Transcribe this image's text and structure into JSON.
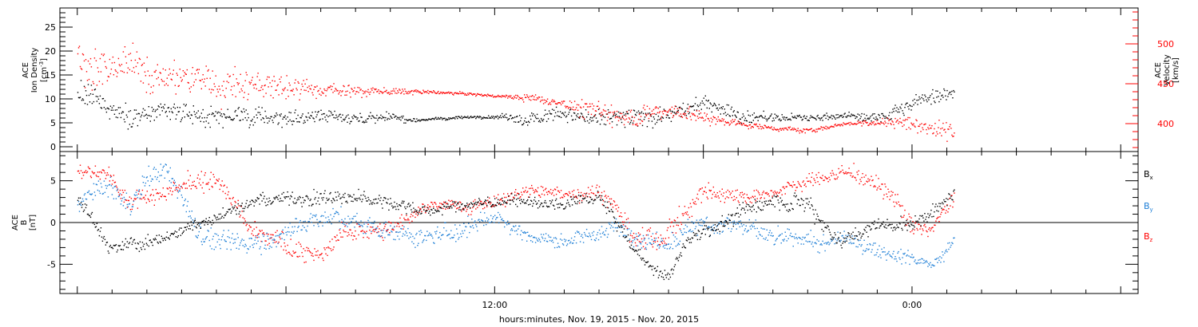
{
  "xlabel": "hours:minutes, Nov. 19, 2015 - Nov. 20, 2015",
  "x_ticks": [
    {
      "t": 12,
      "label": "12:00"
    },
    {
      "t": 24,
      "label": "0:00"
    }
  ],
  "colors": {
    "black": "#000000",
    "red": "#ff0000",
    "blue": "#1e7fd6"
  },
  "chart_data": [
    {
      "type": "scatter",
      "panel": "top",
      "x_unit": "hours since Nov. 19, 2015 00:00",
      "xlim": [
        -0.5,
        30.5
      ],
      "data_xlim": [
        0,
        25.2
      ],
      "grid": false,
      "left_axis": {
        "label_line1": "ACE",
        "label_line2": "Ion Density",
        "unit": "[cm",
        "unit_exp": "-3",
        "unit_close": "]",
        "ylim": [
          -1,
          29
        ],
        "ticks": [
          "0",
          "5",
          "10",
          "15",
          "20",
          "25"
        ],
        "tick_values": [
          0,
          5,
          10,
          15,
          20,
          25
        ],
        "color": "#000000"
      },
      "right_axis": {
        "label_line1": "ACE",
        "label_line2": "Velocity",
        "unit": "[km/s]",
        "ylim": [
          365,
          545
        ],
        "ticks": [
          "400",
          "450",
          "500"
        ],
        "tick_values": [
          400,
          450,
          500
        ],
        "color": "#ff0000"
      },
      "series": [
        {
          "axis": "left",
          "color": "#000000",
          "keyframes": [
            [
              0,
              11
            ],
            [
              1,
              8
            ],
            [
              2,
              6.5
            ],
            [
              4,
              6.5
            ],
            [
              6,
              6
            ],
            [
              8,
              6
            ],
            [
              10,
              5.8
            ],
            [
              12,
              6.5
            ],
            [
              13,
              7
            ],
            [
              14,
              7.2
            ],
            [
              15,
              5.5
            ],
            [
              16,
              6
            ],
            [
              17,
              7
            ],
            [
              18,
              9.5
            ],
            [
              19,
              6.5
            ],
            [
              20,
              6
            ],
            [
              21,
              6
            ],
            [
              22,
              6.5
            ],
            [
              23,
              6
            ],
            [
              24,
              9
            ],
            [
              25.2,
              13
            ]
          ],
          "scatter": [
            [
              0,
              3.5
            ],
            [
              2,
              2.8
            ],
            [
              4,
              2.5
            ],
            [
              6,
              2.2
            ],
            [
              8,
              1.6
            ],
            [
              10,
              0.4
            ],
            [
              12,
              0.4
            ],
            [
              13,
              2.4
            ],
            [
              14,
              1.8
            ],
            [
              15,
              2.2
            ],
            [
              16,
              2.5
            ],
            [
              17,
              2
            ],
            [
              18,
              2
            ],
            [
              19,
              2
            ],
            [
              20,
              1.2
            ],
            [
              21,
              0.8
            ],
            [
              22,
              0.8
            ],
            [
              23,
              1.5
            ],
            [
              24,
              2
            ],
            [
              25.2,
              2.2
            ]
          ]
        },
        {
          "axis": "right",
          "color": "#ff0000",
          "keyframes": [
            [
              0,
              478
            ],
            [
              1,
              470
            ],
            [
              2,
              460
            ],
            [
              3,
              455
            ],
            [
              4,
              450
            ],
            [
              5,
              455
            ],
            [
              6,
              448
            ],
            [
              7,
              445
            ],
            [
              8,
              443
            ],
            [
              9,
              440
            ],
            [
              10,
              440
            ],
            [
              11,
              438
            ],
            [
              12,
              435
            ],
            [
              13,
              433
            ],
            [
              14,
              428
            ],
            [
              15,
              415
            ],
            [
              16,
              412
            ],
            [
              17,
              418
            ],
            [
              18,
              408
            ],
            [
              19,
              400
            ],
            [
              20,
              395
            ],
            [
              21,
              392
            ],
            [
              22,
              400
            ],
            [
              23,
              403
            ],
            [
              24,
              400
            ],
            [
              25.2,
              390
            ]
          ],
          "scatter": [
            [
              0,
              32
            ],
            [
              2,
              28
            ],
            [
              4,
              26
            ],
            [
              6,
              16
            ],
            [
              8,
              8
            ],
            [
              10,
              3
            ],
            [
              12,
              2
            ],
            [
              13,
              6
            ],
            [
              14,
              7
            ],
            [
              15,
              18
            ],
            [
              16,
              16
            ],
            [
              17,
              12
            ],
            [
              18,
              10
            ],
            [
              19,
              5
            ],
            [
              20,
              4
            ],
            [
              21,
              4
            ],
            [
              22,
              3
            ],
            [
              23,
              6
            ],
            [
              24,
              16
            ],
            [
              25.2,
              16
            ]
          ]
        }
      ]
    },
    {
      "type": "scatter",
      "panel": "bottom",
      "x_unit": "hours since Nov. 19, 2015 00:00",
      "xlim": [
        -0.5,
        30.5
      ],
      "data_xlim": [
        0,
        25.2
      ],
      "grid": false,
      "zero_line": true,
      "left_axis": {
        "label_line1": "ACE",
        "label_line2": "B",
        "unit": "[nT]",
        "ylim": [
          -8.5,
          8.5
        ],
        "ticks": [
          "-5",
          "0",
          "5"
        ],
        "tick_values": [
          -5,
          0,
          5
        ],
        "color": "#000000"
      },
      "legend": {
        "placement": "right"
      },
      "series": [
        {
          "name": "B",
          "sub": "x",
          "color": "#000000",
          "keyframes": [
            [
              0,
              3
            ],
            [
              0.5,
              0
            ],
            [
              1,
              -3
            ],
            [
              1.5,
              -2.5
            ],
            [
              2,
              -2.5
            ],
            [
              3,
              -1
            ],
            [
              4,
              1
            ],
            [
              5,
              2.5
            ],
            [
              6,
              3
            ],
            [
              7,
              3.2
            ],
            [
              8,
              3
            ],
            [
              9,
              2.5
            ],
            [
              10,
              1.5
            ],
            [
              11,
              2
            ],
            [
              12,
              2.5
            ],
            [
              13,
              2.5
            ],
            [
              14,
              2
            ],
            [
              15,
              3
            ],
            [
              15.5,
              0
            ],
            [
              16,
              -3.5
            ],
            [
              16.5,
              -5.5
            ],
            [
              17,
              -6.5
            ],
            [
              17.5,
              -2
            ],
            [
              18,
              -1
            ],
            [
              19,
              1
            ],
            [
              20,
              3
            ],
            [
              21,
              3
            ],
            [
              21.5,
              0
            ],
            [
              22,
              -2
            ],
            [
              23,
              0
            ],
            [
              24,
              0
            ],
            [
              25.2,
              3.5
            ]
          ],
          "scatter": [
            [
              0,
              1
            ],
            [
              2,
              1
            ],
            [
              4,
              1
            ],
            [
              6,
              1
            ],
            [
              8,
              1.2
            ],
            [
              10,
              1
            ],
            [
              12,
              0.8
            ],
            [
              14,
              0.8
            ],
            [
              15,
              1
            ],
            [
              16,
              1
            ],
            [
              17,
              0.8
            ],
            [
              18,
              1.2
            ],
            [
              19,
              1.2
            ],
            [
              20,
              1.2
            ],
            [
              21,
              1.5
            ],
            [
              22,
              1.2
            ],
            [
              23,
              1
            ],
            [
              24,
              1
            ],
            [
              25.2,
              1
            ]
          ]
        },
        {
          "name": "B",
          "sub": "y",
          "color": "#1e7fd6",
          "keyframes": [
            [
              0,
              2
            ],
            [
              0.5,
              4
            ],
            [
              1,
              4
            ],
            [
              1.5,
              2
            ],
            [
              2,
              5
            ],
            [
              2.5,
              6
            ],
            [
              3,
              3
            ],
            [
              3.5,
              -1
            ],
            [
              4,
              -2
            ],
            [
              5,
              -2.5
            ],
            [
              6,
              -1
            ],
            [
              7,
              1
            ],
            [
              8,
              0
            ],
            [
              9,
              -1
            ],
            [
              10,
              -2
            ],
            [
              11,
              -1
            ],
            [
              12,
              1
            ],
            [
              13,
              -1.5
            ],
            [
              14,
              -2
            ],
            [
              15,
              -1
            ],
            [
              15.5,
              -0.5
            ],
            [
              16,
              -1
            ],
            [
              16.5,
              -2
            ],
            [
              17,
              -2.5
            ],
            [
              18,
              0
            ],
            [
              19,
              0
            ],
            [
              20,
              -2
            ],
            [
              21,
              -2.5
            ],
            [
              21.5,
              -3
            ],
            [
              22,
              -2
            ],
            [
              23,
              -3
            ],
            [
              24,
              -4
            ],
            [
              24.5,
              -5
            ],
            [
              25.2,
              -2
            ]
          ],
          "scatter": [
            [
              0,
              1.2
            ],
            [
              2,
              1.5
            ],
            [
              4,
              1.5
            ],
            [
              6,
              1.5
            ],
            [
              8,
              1.5
            ],
            [
              10,
              1.5
            ],
            [
              12,
              1.2
            ],
            [
              14,
              1
            ],
            [
              15,
              1.2
            ],
            [
              16,
              1.5
            ],
            [
              17,
              1.5
            ],
            [
              18,
              1.5
            ],
            [
              19,
              1.5
            ],
            [
              20,
              1.2
            ],
            [
              21,
              1.5
            ],
            [
              22,
              1.2
            ],
            [
              23,
              1
            ],
            [
              24,
              1
            ],
            [
              25.2,
              1
            ]
          ]
        },
        {
          "name": "B",
          "sub": "z",
          "color": "#ff0000",
          "keyframes": [
            [
              0,
              6.5
            ],
            [
              0.5,
              6
            ],
            [
              1,
              5.5
            ],
            [
              1.5,
              3
            ],
            [
              2,
              4
            ],
            [
              3,
              5
            ],
            [
              4,
              5
            ],
            [
              5,
              -1.5
            ],
            [
              6,
              -3
            ],
            [
              7,
              -4
            ],
            [
              7.5,
              -2
            ],
            [
              8,
              -1
            ],
            [
              9,
              0
            ],
            [
              10,
              2
            ],
            [
              11,
              2
            ],
            [
              12,
              2.5
            ],
            [
              13,
              4
            ],
            [
              14,
              3.5
            ],
            [
              15,
              4
            ],
            [
              15.5,
              2
            ],
            [
              16,
              -1.5
            ],
            [
              16.5,
              -2
            ],
            [
              17,
              -0.5
            ],
            [
              18,
              4
            ],
            [
              19,
              3.5
            ],
            [
              20,
              4
            ],
            [
              21,
              5
            ],
            [
              22,
              6
            ],
            [
              23,
              5
            ],
            [
              23.5,
              3
            ],
            [
              24,
              0
            ],
            [
              24.5,
              -1
            ],
            [
              25.2,
              3
            ]
          ],
          "scatter": [
            [
              0,
              1.2
            ],
            [
              2,
              1.2
            ],
            [
              4,
              1.5
            ],
            [
              6,
              1.5
            ],
            [
              8,
              1.5
            ],
            [
              10,
              1
            ],
            [
              12,
              1
            ],
            [
              14,
              1
            ],
            [
              15,
              1
            ],
            [
              16,
              1.5
            ],
            [
              17,
              2
            ],
            [
              18,
              1.5
            ],
            [
              19,
              1.2
            ],
            [
              20,
              1
            ],
            [
              21,
              1
            ],
            [
              22,
              1
            ],
            [
              23,
              1.5
            ],
            [
              24,
              1.5
            ],
            [
              25.2,
              1.2
            ]
          ]
        }
      ]
    }
  ]
}
